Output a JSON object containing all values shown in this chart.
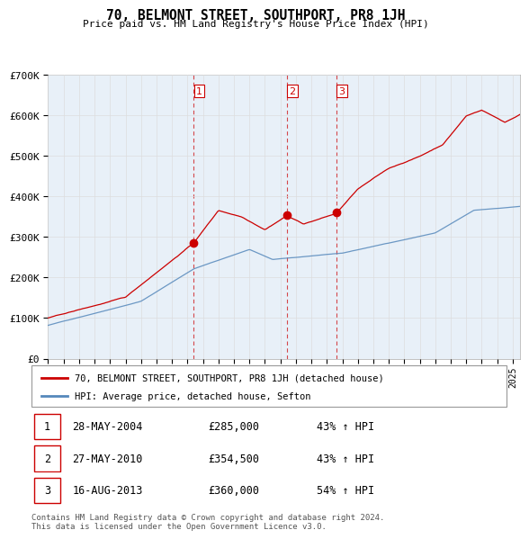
{
  "title": "70, BELMONT STREET, SOUTHPORT, PR8 1JH",
  "subtitle": "Price paid vs. HM Land Registry's House Price Index (HPI)",
  "ylim": [
    0,
    700000
  ],
  "yticks": [
    0,
    100000,
    200000,
    300000,
    400000,
    500000,
    600000,
    700000
  ],
  "ytick_labels": [
    "£0",
    "£100K",
    "£200K",
    "£300K",
    "£400K",
    "£500K",
    "£600K",
    "£700K"
  ],
  "xlim": [
    1995,
    2025.5
  ],
  "sale_years": [
    2004.41,
    2010.41,
    2013.62
  ],
  "sale_prices": [
    285000,
    354500,
    360000
  ],
  "sale_dates": [
    "28-MAY-2004",
    "27-MAY-2010",
    "16-AUG-2013"
  ],
  "sale_hpi_pct": [
    "43%",
    "43%",
    "54%"
  ],
  "legend_property": "70, BELMONT STREET, SOUTHPORT, PR8 1JH (detached house)",
  "legend_hpi": "HPI: Average price, detached house, Sefton",
  "footnote": "Contains HM Land Registry data © Crown copyright and database right 2024.\nThis data is licensed under the Open Government Licence v3.0.",
  "red_color": "#cc0000",
  "blue_color": "#5588bb",
  "grid_color": "#dddddd",
  "bg_color": "#e8f0f8"
}
